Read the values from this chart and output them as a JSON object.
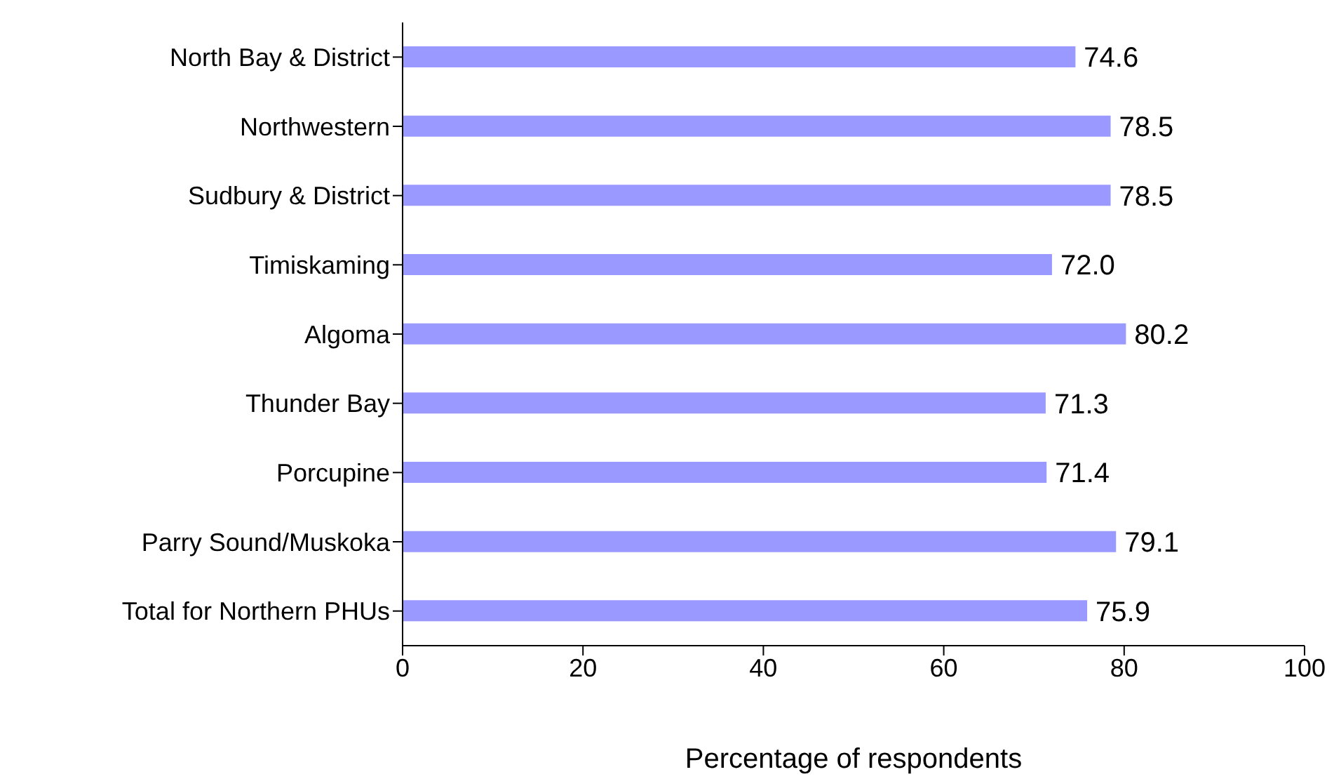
{
  "chart_data": {
    "type": "bar",
    "orientation": "horizontal",
    "xlabel": "Percentage of respondents",
    "categories": [
      "North Bay & District",
      "Northwestern",
      "Sudbury & District",
      "Timiskaming",
      "Algoma",
      "Thunder Bay",
      "Porcupine",
      "Parry Sound/Muskoka",
      "Total for Northern PHUs"
    ],
    "values": [
      74.6,
      78.5,
      78.5,
      72.0,
      80.2,
      71.3,
      71.4,
      79.1,
      75.9
    ],
    "value_labels": [
      "74.6",
      "78.5",
      "78.5",
      "72.0",
      "80.2",
      "71.3",
      "71.4",
      "79.1",
      "75.9"
    ],
    "color": "#9999ff",
    "xlim": [
      0,
      100
    ],
    "xticks": [
      0,
      20,
      40,
      60,
      80,
      100
    ],
    "grid": false,
    "legend": false
  }
}
